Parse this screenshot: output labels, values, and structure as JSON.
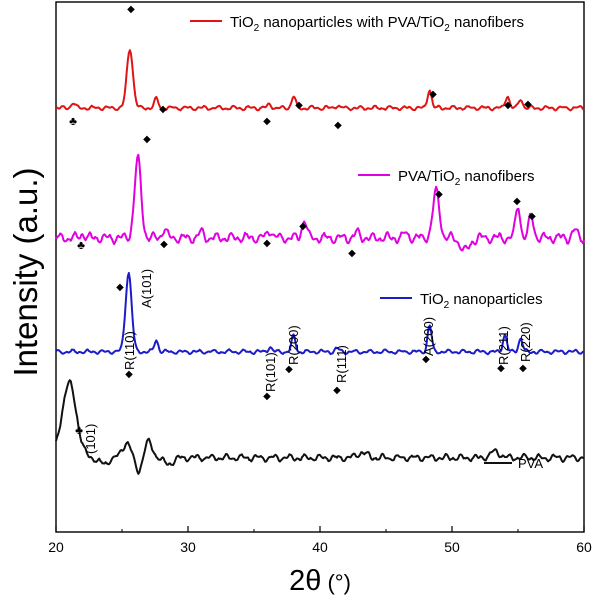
{
  "chart_data": {
    "type": "line",
    "xlabel": "2θ (°)",
    "ylabel": "Intensity (a.u.)",
    "xlim": [
      20,
      60
    ],
    "x_ticks": [
      "20",
      "30",
      "40",
      "50",
      "60"
    ],
    "y_ticks": "none",
    "grid": false,
    "legend_placement": "per-trace labels (right)",
    "series": [
      {
        "name": "TiO2 nanoparticles with PVA/TiO2 nanofibers",
        "color": "#e01414",
        "baseline": 0.8,
        "peaks": [
          [
            21.3,
            0.01
          ],
          [
            25.6,
            0.112
          ],
          [
            27.6,
            0.017
          ],
          [
            36.2,
            0.007
          ],
          [
            38.0,
            0.022
          ],
          [
            41.3,
            0.005
          ],
          [
            48.3,
            0.036
          ],
          [
            54.2,
            0.024
          ],
          [
            55.2,
            0.017
          ]
        ]
      },
      {
        "name": "PVA/TiO2 nanofibers",
        "color": "#e000e0",
        "baseline": 0.555,
        "peaks": [
          [
            22.0,
            0.008
          ],
          [
            26.2,
            0.148
          ],
          [
            28.2,
            0.017
          ],
          [
            31.0,
            0.01
          ],
          [
            36.2,
            0.015
          ],
          [
            38.8,
            0.036
          ],
          [
            42.8,
            0.01
          ],
          [
            46.5,
            0.008
          ],
          [
            48.8,
            0.086
          ],
          [
            51.0,
            -0.025
          ],
          [
            55.0,
            0.062
          ],
          [
            56.0,
            0.042
          ],
          [
            59.3,
            0.015
          ]
        ]
      },
      {
        "name": "TiO2 nanoparticles",
        "color": "#1c1cc8",
        "baseline": 0.34,
        "peaks": [
          [
            25.5,
            0.15
          ],
          [
            27.6,
            0.022
          ],
          [
            36.2,
            0.009
          ],
          [
            38.0,
            0.03
          ],
          [
            41.3,
            0.006
          ],
          [
            48.3,
            0.05
          ],
          [
            54.0,
            0.033
          ],
          [
            55.2,
            0.026
          ]
        ]
      },
      {
        "name": "PVA",
        "color": "#111111",
        "baseline": 0.14,
        "peaks": [
          [
            21.0,
            0.14
          ],
          [
            23.6,
            -0.012
          ],
          [
            25.4,
            0.03
          ],
          [
            26.3,
            -0.032
          ],
          [
            26.9,
            0.035
          ],
          [
            28.5,
            -0.012
          ],
          [
            43.2,
            0.01
          ],
          [
            53.3,
            0.012
          ]
        ]
      }
    ],
    "annotations": {
      "phase_labels": [
        "A(101)",
        "R(110)",
        "R(101)",
        "R(200)",
        "R(111)",
        "A(200)",
        "R(211)",
        "R(220)",
        "(101)"
      ],
      "markers": [
        "◆",
        "♣"
      ]
    }
  },
  "legend": {
    "red_prefix": "TiO",
    "red_sub1": "2",
    "red_mid": " nanoparticles with PVA/TiO",
    "red_sub2": "2",
    "red_suffix": " nanofibers",
    "magenta_prefix": "PVA/TiO",
    "magenta_sub": "2",
    "magenta_suffix": " nanofibers",
    "blue_prefix": "TiO",
    "blue_sub": "2",
    "blue_suffix": " nanoparticles",
    "black_label": "PVA"
  },
  "axis": {
    "ylabel": "Intensity (a.u.)",
    "xlabel_main": "2θ",
    "xlabel_unit": " (°)"
  }
}
